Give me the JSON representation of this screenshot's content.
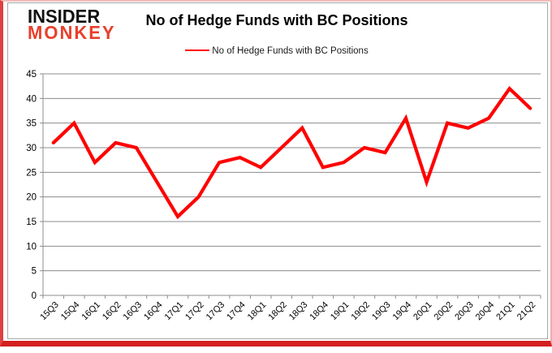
{
  "logo": {
    "line1": "INSIDER",
    "line2": "MONKEY"
  },
  "title": "No of Hedge Funds with BC Positions",
  "legend": {
    "label": "No of Hedge Funds with BC Positions"
  },
  "colors": {
    "line": "#ff0000",
    "grid": "#8c8c8c",
    "axis": "#8c8c8c",
    "text": "#000000",
    "logo_red": "#e8402c",
    "frame_border": "#a6a6a6",
    "page_border_red": "#d41f1f"
  },
  "chart_data": {
    "type": "line",
    "title": "No of Hedge Funds with BC Positions",
    "categories": [
      "15Q3",
      "15Q4",
      "16Q1",
      "16Q2",
      "16Q3",
      "16Q4",
      "17Q1",
      "17Q2",
      "17Q3",
      "17Q4",
      "18Q1",
      "18Q2",
      "18Q3",
      "18Q4",
      "19Q1",
      "19Q2",
      "19Q3",
      "19Q4",
      "20Q1",
      "20Q2",
      "20Q3",
      "20Q4",
      "21Q1",
      "21Q2"
    ],
    "series": [
      {
        "name": "No of Hedge Funds with BC Positions",
        "color": "#ff0000",
        "values": [
          31,
          35,
          27,
          31,
          30,
          23,
          16,
          20,
          27,
          28,
          26,
          30,
          34,
          26,
          27,
          30,
          29,
          36,
          23,
          35,
          34,
          36,
          42,
          38
        ]
      }
    ],
    "xlabel": "",
    "ylabel": "",
    "ylim": [
      0,
      45
    ],
    "ytick_step": 5,
    "grid": true,
    "legend_position": "top-center"
  }
}
